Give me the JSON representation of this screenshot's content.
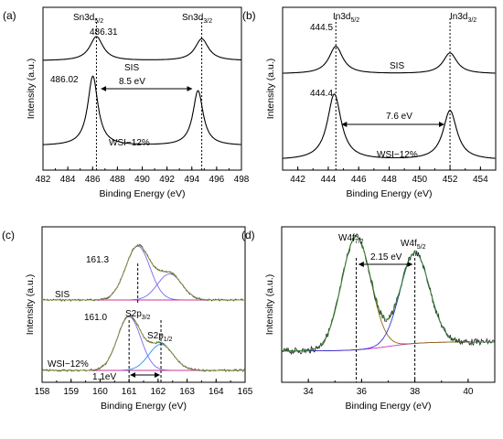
{
  "chart_data": [
    {
      "panel": "(a)",
      "type": "line",
      "xlabel": "Binding Energy (eV)",
      "ylabel": "Intensity (a.u.)",
      "xlim": [
        482,
        498
      ],
      "xticks": [
        "482",
        "484",
        "486",
        "488",
        "490",
        "492",
        "494",
        "496",
        "498"
      ],
      "series": [
        {
          "name": "SIS",
          "peaks": [
            {
              "x": 486.31,
              "height": 0.55,
              "width": 0.65
            },
            {
              "x": 494.8,
              "height": 0.5,
              "width": 0.65
            }
          ],
          "baseline": 0.05
        },
        {
          "name": "WSI–12%",
          "peaks": [
            {
              "x": 486.02,
              "height": 0.95,
              "width": 0.5
            },
            {
              "x": 494.5,
              "height": 0.75,
              "width": 0.5
            }
          ],
          "baseline": 0.02
        }
      ],
      "annotations": [
        {
          "text": "Sn3d",
          "sub": "5/2",
          "x": 486.31
        },
        {
          "text": "Sn3d",
          "sub": "3/2",
          "x": 494.8
        },
        {
          "text": "486.31"
        },
        {
          "text": "486.02"
        },
        {
          "text": "8.5 eV"
        },
        {
          "text": "SIS"
        },
        {
          "text": "WSI−12%"
        }
      ]
    },
    {
      "panel": "(b)",
      "type": "line",
      "xlabel": "Binding Energy (eV)",
      "ylabel": "Intensity (a.u.)",
      "xlim": [
        441,
        455
      ],
      "xticks": [
        "442",
        "444",
        "446",
        "448",
        "450",
        "452",
        "454"
      ],
      "series": [
        {
          "name": "SIS",
          "peaks": [
            {
              "x": 444.5,
              "height": 0.5,
              "width": 0.55
            },
            {
              "x": 452.0,
              "height": 0.38,
              "width": 0.55
            }
          ],
          "baseline": 0.04
        },
        {
          "name": "WSI–12%",
          "peaks": [
            {
              "x": 444.4,
              "height": 0.8,
              "width": 0.55
            },
            {
              "x": 452.0,
              "height": 0.6,
              "width": 0.55
            }
          ],
          "baseline": 0.03
        }
      ],
      "annotations": [
        {
          "text": "In3d",
          "sub": "5/2"
        },
        {
          "text": "In3d",
          "sub": "3/2"
        },
        {
          "text": "444.5"
        },
        {
          "text": "444.4"
        },
        {
          "text": "7.6 eV"
        },
        {
          "text": "SIS"
        },
        {
          "text": "WSI−12%"
        }
      ]
    },
    {
      "panel": "(c)",
      "type": "line",
      "xlabel": "Binding Energy (eV)",
      "ylabel": "Intensity (a.u.)",
      "xlim": [
        158,
        165
      ],
      "xticks": [
        "158",
        "159",
        "160",
        "161",
        "162",
        "163",
        "164",
        "165"
      ],
      "series": [
        {
          "name": "SIS",
          "components": [
            {
              "x": 161.3,
              "height": 0.62,
              "width": 0.42
            },
            {
              "x": 162.4,
              "height": 0.3,
              "width": 0.42
            }
          ]
        },
        {
          "name": "WSI–12%",
          "components": [
            {
              "x": 161.0,
              "height": 0.62,
              "width": 0.4
            },
            {
              "x": 162.1,
              "height": 0.3,
              "width": 0.42
            }
          ]
        }
      ],
      "annotations": [
        {
          "text": "161.3"
        },
        {
          "text": "161.0"
        },
        {
          "text": "S2p",
          "sub": "3/2"
        },
        {
          "text": "S2p",
          "sub": "1/2"
        },
        {
          "text": "1.1eV"
        },
        {
          "text": "SIS"
        },
        {
          "text": "WSI−12%"
        }
      ]
    },
    {
      "panel": "(d)",
      "type": "line",
      "xlabel": "Binding Energy (eV)",
      "ylabel": "Intensity (a.u.)",
      "xlim": [
        33,
        41
      ],
      "xticks": [
        "34",
        "36",
        "38",
        "40"
      ],
      "series": [
        {
          "name": "W4f",
          "components": [
            {
              "x": 35.8,
              "height": 0.75,
              "width": 0.55
            },
            {
              "x": 38.0,
              "height": 0.6,
              "width": 0.55
            }
          ]
        }
      ],
      "annotations": [
        {
          "text": "W4f",
          "sub": "7/2"
        },
        {
          "text": "W4f",
          "sub": "5/2"
        },
        {
          "text": "2.15 eV"
        }
      ]
    }
  ]
}
